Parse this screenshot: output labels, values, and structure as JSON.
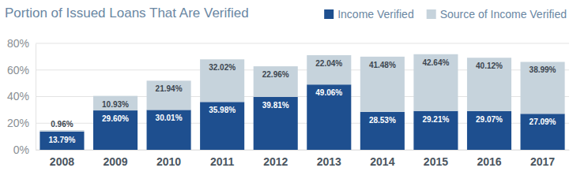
{
  "chart_data": {
    "type": "bar",
    "title": "Portion of Issued Loans That Are Verified",
    "categories": [
      "2008",
      "2009",
      "2010",
      "2011",
      "2012",
      "2013",
      "2014",
      "2015",
      "2016",
      "2017"
    ],
    "series": [
      {
        "name": "Income Verified",
        "color": "#1e4f8f",
        "values": [
          13.79,
          29.6,
          30.01,
          35.98,
          39.81,
          49.06,
          28.53,
          29.21,
          29.07,
          27.09
        ],
        "value_labels": [
          "13.79%",
          "29.60%",
          "30.01%",
          "35.98%",
          "39.81%",
          "49.06%",
          "28.53%",
          "29.21%",
          "29.07%",
          "27.09%"
        ]
      },
      {
        "name": "Source of Income Verified",
        "color": "#c6d3dc",
        "values": [
          0.96,
          10.93,
          21.94,
          32.02,
          22.96,
          22.04,
          41.48,
          42.64,
          40.12,
          38.99
        ],
        "value_labels": [
          "0.96%",
          "10.93%",
          "21.94%",
          "32.02%",
          "22.96%",
          "22.04%",
          "41.48%",
          "42.64%",
          "40.12%",
          "38.99%"
        ]
      }
    ],
    "ylim": [
      0,
      80
    ],
    "yticks": [
      {
        "value": 0,
        "label": "0%"
      },
      {
        "value": 20,
        "label": "20%"
      },
      {
        "value": 40,
        "label": "40%"
      },
      {
        "value": 60,
        "label": "60%"
      },
      {
        "value": 80,
        "label": "80%"
      }
    ],
    "grid": true,
    "stacked": true,
    "data_labels": true,
    "legend": "upper right"
  }
}
